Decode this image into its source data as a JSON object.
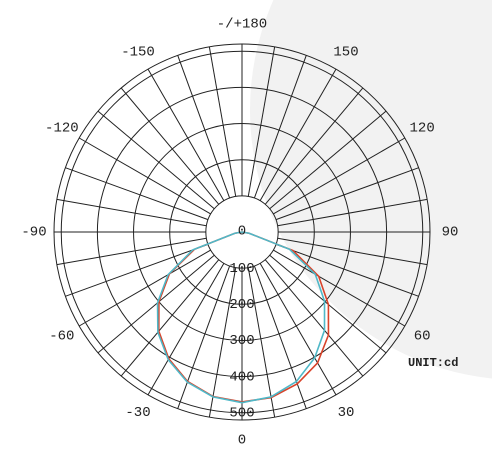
{
  "chart_data": {
    "type": "polar",
    "angle_ticks": [
      {
        "value": 0,
        "label": "0"
      },
      {
        "value": 30,
        "label": "30"
      },
      {
        "value": 60,
        "label": "60"
      },
      {
        "value": 90,
        "label": "90"
      },
      {
        "value": 120,
        "label": "120"
      },
      {
        "value": 150,
        "label": "150"
      },
      {
        "value": 180,
        "label": "-/+180"
      },
      {
        "value": -150,
        "label": "-150"
      },
      {
        "value": -120,
        "label": "-120"
      },
      {
        "value": -90,
        "label": "-90"
      },
      {
        "value": -60,
        "label": "-60"
      },
      {
        "value": -30,
        "label": "-30"
      }
    ],
    "rlim": [
      0,
      520
    ],
    "rticks": [
      0,
      100,
      200,
      300,
      400,
      500
    ],
    "unit_label": "UNIT:cd",
    "x": [
      -90,
      -80,
      -70,
      -60,
      -50,
      -40,
      -30,
      -20,
      -10,
      0,
      10,
      20,
      30,
      40,
      50,
      60,
      70,
      80,
      90
    ],
    "series": [
      {
        "color": "#d9432a",
        "values": [
          0,
          20,
          140,
          232,
          300,
          358,
          405,
          440,
          462,
          470,
          465,
          447,
          418,
          372,
          312,
          245,
          150,
          20,
          0
        ]
      },
      {
        "color": "#4fb8c8",
        "values": [
          0,
          20,
          145,
          236,
          305,
          362,
          408,
          442,
          463,
          472,
          463,
          440,
          402,
          355,
          298,
          234,
          140,
          20,
          0
        ]
      }
    ]
  }
}
